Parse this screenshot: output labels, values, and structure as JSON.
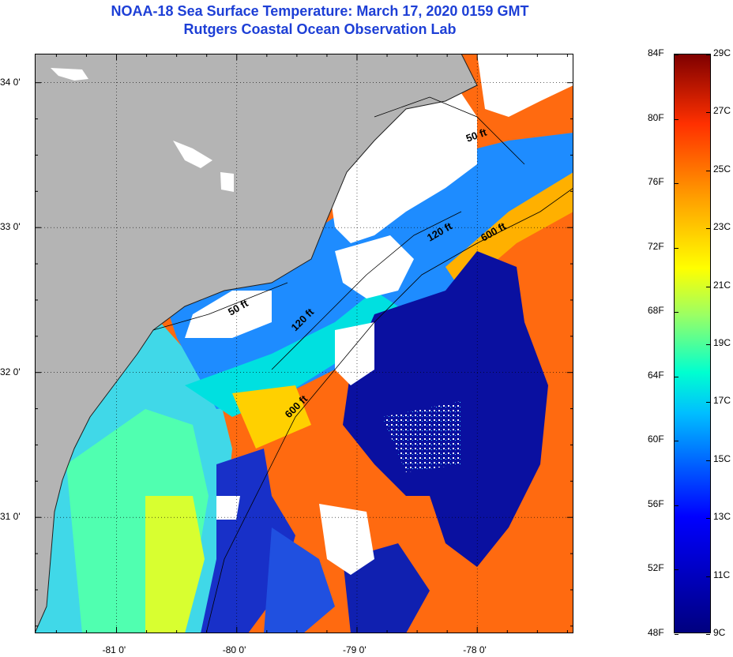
{
  "title": {
    "line1": "NOAA-18 Sea Surface Temperature:  March 17, 2020 0159 GMT",
    "line2": "Rutgers Coastal Ocean Observation Lab"
  },
  "map": {
    "lat_ticks": [
      {
        "value": 34.0,
        "label": "34 0'"
      },
      {
        "value": 33.0,
        "label": "33 0'"
      },
      {
        "value": 32.0,
        "label": "32 0'"
      },
      {
        "value": 31.0,
        "label": "31 0'"
      }
    ],
    "lon_ticks": [
      {
        "value": -81.0,
        "label": "-81 0'"
      },
      {
        "value": -80.0,
        "label": "-80 0'"
      },
      {
        "value": -79.0,
        "label": "-79 0'"
      },
      {
        "value": -78.0,
        "label": "-78 0'"
      }
    ],
    "lat_range": [
      30.2,
      34.2
    ],
    "lon_range": [
      -81.68,
      -77.2
    ],
    "isobaths": [
      "50 ft",
      "50 ft",
      "120 ft",
      "120 ft",
      "600 ft",
      "600 ft"
    ],
    "colors": {
      "land": "#b4b4b4",
      "cloud": "#ffffff",
      "cold": "#0a10a0",
      "warm": "#ff5010"
    }
  },
  "colorbar": {
    "fahrenheit": [
      {
        "v": 84,
        "label": "84F"
      },
      {
        "v": 80,
        "label": "80F"
      },
      {
        "v": 76,
        "label": "76F"
      },
      {
        "v": 72,
        "label": "72F"
      },
      {
        "v": 68,
        "label": "68F"
      },
      {
        "v": 64,
        "label": "64F"
      },
      {
        "v": 60,
        "label": "60F"
      },
      {
        "v": 56,
        "label": "56F"
      },
      {
        "v": 52,
        "label": "52F"
      },
      {
        "v": 48,
        "label": "48F"
      }
    ],
    "celsius": [
      {
        "v": 29,
        "label": "29C"
      },
      {
        "v": 27,
        "label": "27C"
      },
      {
        "v": 25,
        "label": "25C"
      },
      {
        "v": 23,
        "label": "23C"
      },
      {
        "v": 21,
        "label": "21C"
      },
      {
        "v": 19,
        "label": "19C"
      },
      {
        "v": 17,
        "label": "17C"
      },
      {
        "v": 15,
        "label": "15C"
      },
      {
        "v": 13,
        "label": "13C"
      },
      {
        "v": 11,
        "label": "11C"
      },
      {
        "v": 9,
        "label": "9C"
      }
    ],
    "f_range": [
      48,
      84
    ],
    "c_range": [
      9,
      29
    ]
  }
}
